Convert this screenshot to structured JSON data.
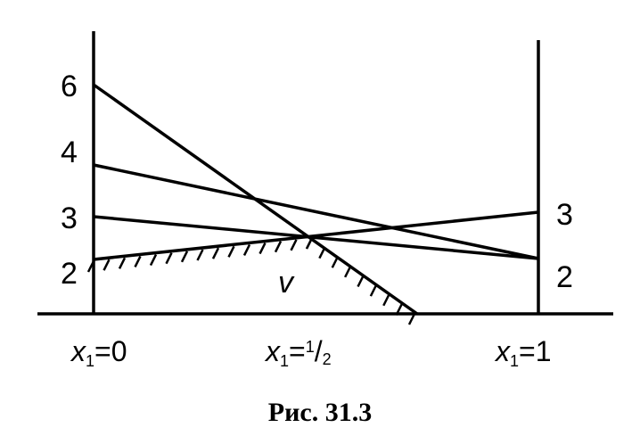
{
  "left_labels": [
    "6",
    "4",
    "3",
    "2"
  ],
  "right_labels": [
    "3",
    "2"
  ],
  "region_label": "v",
  "x_labels": [
    {
      "symbol": "x",
      "subscript": "1",
      "value": "=0"
    },
    {
      "symbol": "x",
      "subscript": "1",
      "value": "=",
      "numerator": "1",
      "denominator": "2"
    },
    {
      "symbol": "x",
      "subscript": "1",
      "value": "=1"
    }
  ],
  "caption": "Рис. 31.3"
}
